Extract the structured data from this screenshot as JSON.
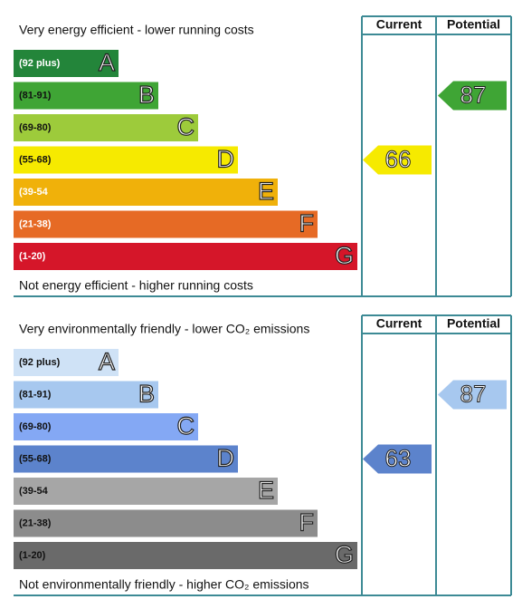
{
  "chart_data": [
    {
      "type": "epc",
      "top_text": "Very energy efficient - lower running costs",
      "bottom_text": "Not energy efficient - higher running costs",
      "headers": [
        "Current",
        "Potential"
      ],
      "bands": [
        {
          "label": "(92 plus)",
          "letter": "A",
          "color": "#23853a"
        },
        {
          "label": "(81-91)",
          "letter": "B",
          "color": "#3fa535"
        },
        {
          "label": "(69-80)",
          "letter": "C",
          "color": "#9dcb3b"
        },
        {
          "label": "(55-68)",
          "letter": "D",
          "color": "#f6ea00"
        },
        {
          "label": "(39-54",
          "letter": "E",
          "color": "#f0b10a"
        },
        {
          "label": "(21-38)",
          "letter": "F",
          "color": "#e66a25"
        },
        {
          "label": "(1-20)",
          "letter": "G",
          "color": "#d51629"
        }
      ],
      "current": 66,
      "potential": 87
    },
    {
      "type": "epc",
      "top_text": "Very environmentally friendly - lower CO₂ emissions",
      "bottom_text": "Not environmentally friendly - higher CO₂ emissions",
      "headers": [
        "Current",
        "Potential"
      ],
      "bands": [
        {
          "label": "(92 plus)",
          "letter": "A",
          "color": "#cfe2f6"
        },
        {
          "label": "(81-91)",
          "letter": "B",
          "color": "#a7c8ef"
        },
        {
          "label": "(69-80)",
          "letter": "C",
          "color": "#84a8f4"
        },
        {
          "label": "(55-68)",
          "letter": "D",
          "color": "#5c83cc"
        },
        {
          "label": "(39-54",
          "letter": "E",
          "color": "#a6a6a6"
        },
        {
          "label": "(21-38)",
          "letter": "F",
          "color": "#8c8c8c"
        },
        {
          "label": "(1-20)",
          "letter": "G",
          "color": "#6a6a6a"
        }
      ],
      "current": 63,
      "potential": 87
    }
  ]
}
